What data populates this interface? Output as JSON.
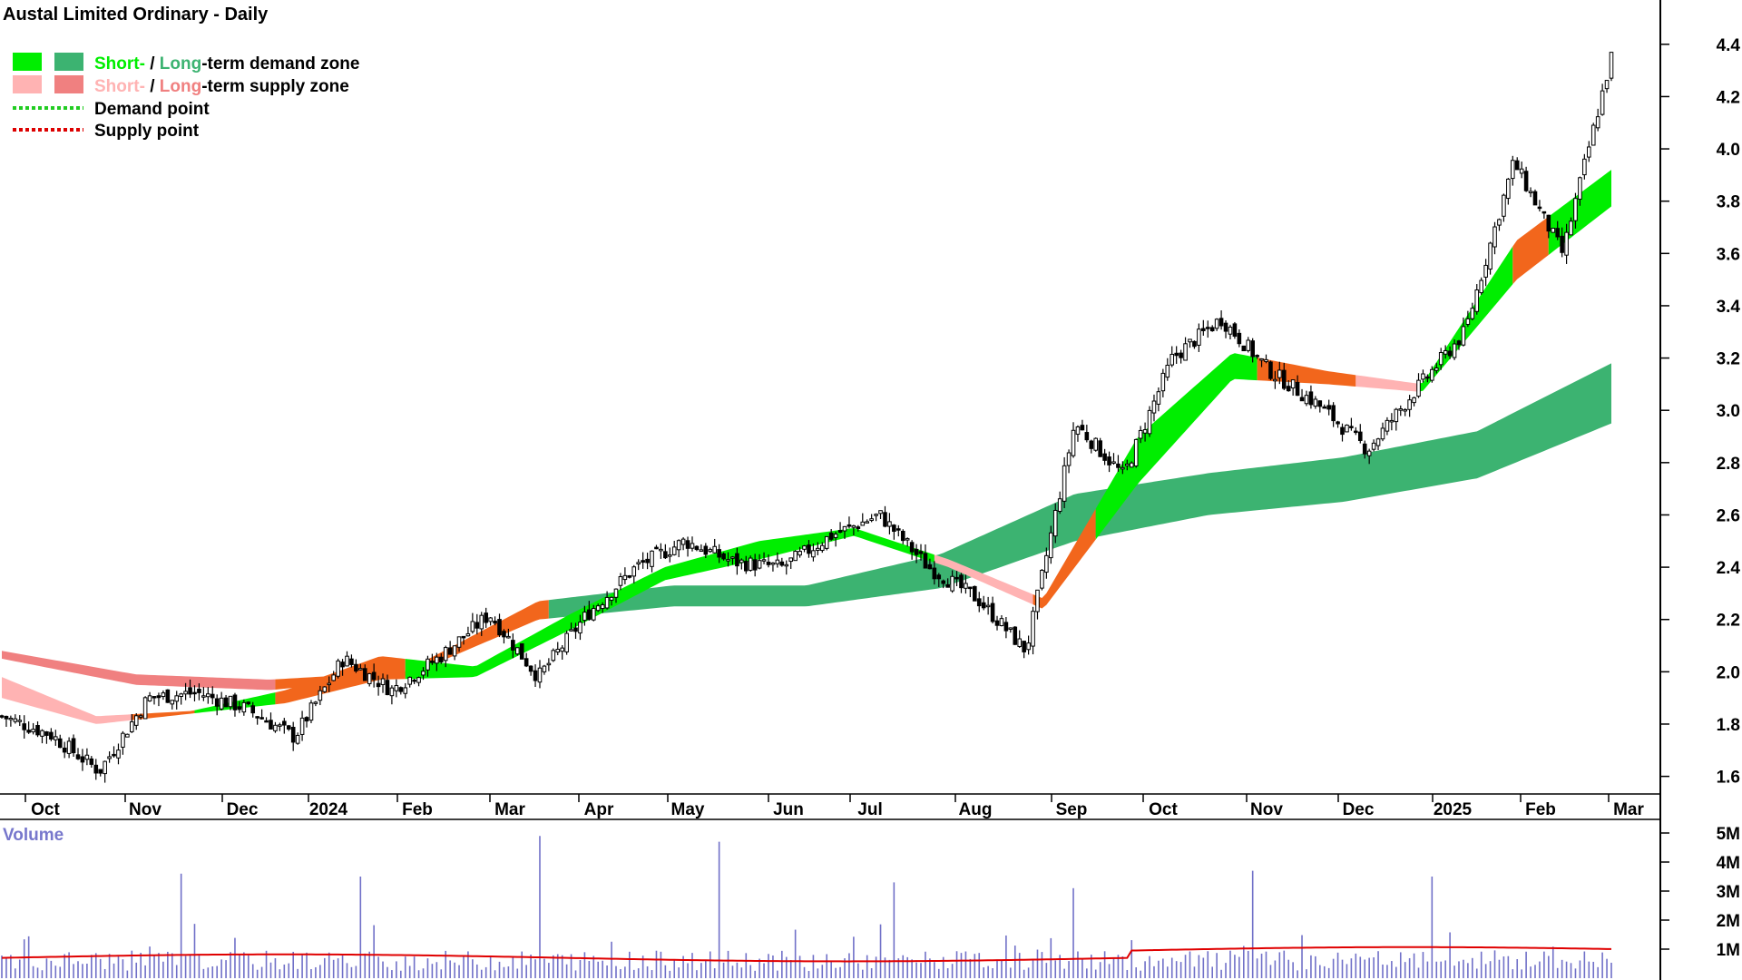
{
  "title": "Austal Limited Ordinary - Daily",
  "legend": {
    "demand_zone": {
      "short": "Short-",
      "sep": " / ",
      "long": "Long",
      "rest": "-term demand zone"
    },
    "supply_zone": {
      "short": "Short-",
      "sep": " / ",
      "long": "Long",
      "rest": "-term supply zone"
    },
    "demand_point": "Demand point",
    "supply_point": "Supply point"
  },
  "colors": {
    "short_demand": "#00ee00",
    "long_demand": "#3cb371",
    "short_supply": "#ffb3b3",
    "long_supply": "#f08080",
    "transition_zone": "#f2661c",
    "demand_point": "#22cc22",
    "supply_point": "#dd0000",
    "volume_bar": "#7070c8",
    "volume_avg": "#e00000",
    "volume_label": "#7777cc"
  },
  "chart_data": [
    {
      "type": "candlestick",
      "title": "Austal Limited Ordinary - Daily",
      "x_months": [
        "Oct",
        "Nov",
        "Dec",
        "2024",
        "Feb",
        "Mar",
        "Apr",
        "May",
        "Jun",
        "Jul",
        "Aug",
        "Sep",
        "Oct",
        "Nov",
        "Dec",
        "2025",
        "Feb",
        "Mar"
      ],
      "y_ticks": [
        "4.4",
        "4.2",
        "4.0",
        "3.8",
        "3.6",
        "3.4",
        "3.2",
        "3.0",
        "2.8",
        "2.6",
        "2.4",
        "2.2",
        "2.0",
        "1.8",
        "1.6"
      ],
      "ylim": [
        1.55,
        4.5
      ],
      "close_anchors": [
        [
          "Oct",
          1.83
        ],
        [
          "Oct-mid",
          1.76
        ],
        [
          "Nov-early",
          1.62
        ],
        [
          "Nov",
          1.9
        ],
        [
          "Nov-mid",
          1.92
        ],
        [
          "Dec",
          1.86
        ],
        [
          "Dec-mid",
          1.75
        ],
        [
          "2024",
          2.05
        ],
        [
          "Jan-mid",
          1.93
        ],
        [
          "Feb",
          2.06
        ],
        [
          "Feb-mid",
          2.22
        ],
        [
          "Mar",
          1.98
        ],
        [
          "Mar-mid",
          2.22
        ],
        [
          "Apr",
          2.4
        ],
        [
          "May",
          2.5
        ],
        [
          "May-mid",
          2.42
        ],
        [
          "Jun",
          2.4
        ],
        [
          "Jul",
          2.52
        ],
        [
          "Jul-end",
          2.6
        ],
        [
          "Aug",
          2.4
        ],
        [
          "Aug-mid",
          2.28
        ],
        [
          "Sep",
          2.08
        ],
        [
          "Sep-mid",
          2.95
        ],
        [
          "Oct",
          2.75
        ],
        [
          "Oct-mid",
          3.2
        ],
        [
          "Nov",
          3.35
        ],
        [
          "Nov-mid",
          3.15
        ],
        [
          "Dec",
          3.02
        ],
        [
          "Dec-mid",
          2.85
        ],
        [
          "2025",
          3.08
        ],
        [
          "Jan-end",
          3.3
        ],
        [
          "Feb",
          3.95
        ],
        [
          "Feb-mid",
          3.6
        ],
        [
          "Mar",
          4.35
        ]
      ],
      "short_term_zone_anchors": [
        [
          "Oct",
          1.9,
          1.98
        ],
        [
          "Nov",
          1.8,
          1.83
        ],
        [
          "Dec",
          1.84,
          1.85
        ],
        [
          "2024",
          1.88,
          1.93
        ],
        [
          "Feb",
          1.97,
          2.06
        ],
        [
          "Mar",
          1.98,
          2.02
        ],
        [
          "Apr",
          2.16,
          2.22
        ],
        [
          "May",
          2.35,
          2.4
        ],
        [
          "Jul",
          2.43,
          2.5
        ],
        [
          "Jul-end",
          2.52,
          2.55
        ],
        [
          "Aug",
          2.4,
          2.43
        ],
        [
          "Sep",
          2.24,
          2.28
        ],
        [
          "Oct",
          2.72,
          2.9
        ],
        [
          "Nov",
          3.12,
          3.22
        ],
        [
          "Dec",
          3.1,
          3.15
        ],
        [
          "2025",
          3.07,
          3.1
        ],
        [
          "Feb",
          3.5,
          3.65
        ],
        [
          "Mar",
          3.78,
          3.92
        ]
      ],
      "long_term_zone_anchors": [
        [
          "Oct",
          2.05,
          2.08
        ],
        [
          "Dec",
          1.95,
          1.99
        ],
        [
          "2024",
          1.93,
          1.97
        ],
        [
          "Apr",
          1.98,
          2.0
        ],
        [
          "Jul",
          2.2,
          2.27
        ],
        [
          "Aug",
          2.25,
          2.33
        ],
        [
          "Sep",
          2.25,
          2.33
        ],
        [
          "Oct",
          2.32,
          2.45
        ],
        [
          "Nov",
          2.5,
          2.68
        ],
        [
          "Dec",
          2.6,
          2.76
        ],
        [
          "2025",
          2.65,
          2.82
        ],
        [
          "Feb",
          2.74,
          2.92
        ],
        [
          "Mar",
          2.95,
          3.18
        ]
      ]
    },
    {
      "type": "bar",
      "title": "Volume",
      "y_ticks": [
        "5M",
        "4M",
        "3M",
        "2M",
        "1M"
      ],
      "ylim": [
        0,
        5000000
      ],
      "average_line": 700000,
      "notable_spikes": [
        [
          "Feb-mid",
          3600000
        ],
        [
          "Apr",
          3500000
        ],
        [
          "Sep-mid",
          4900000
        ],
        [
          "Sep-mid+",
          4700000
        ],
        [
          "Nov",
          3300000
        ],
        [
          "Dec",
          3100000
        ],
        [
          "Feb",
          3700000
        ],
        [
          "Mar",
          3500000
        ]
      ]
    }
  ],
  "volume_label": "Volume"
}
